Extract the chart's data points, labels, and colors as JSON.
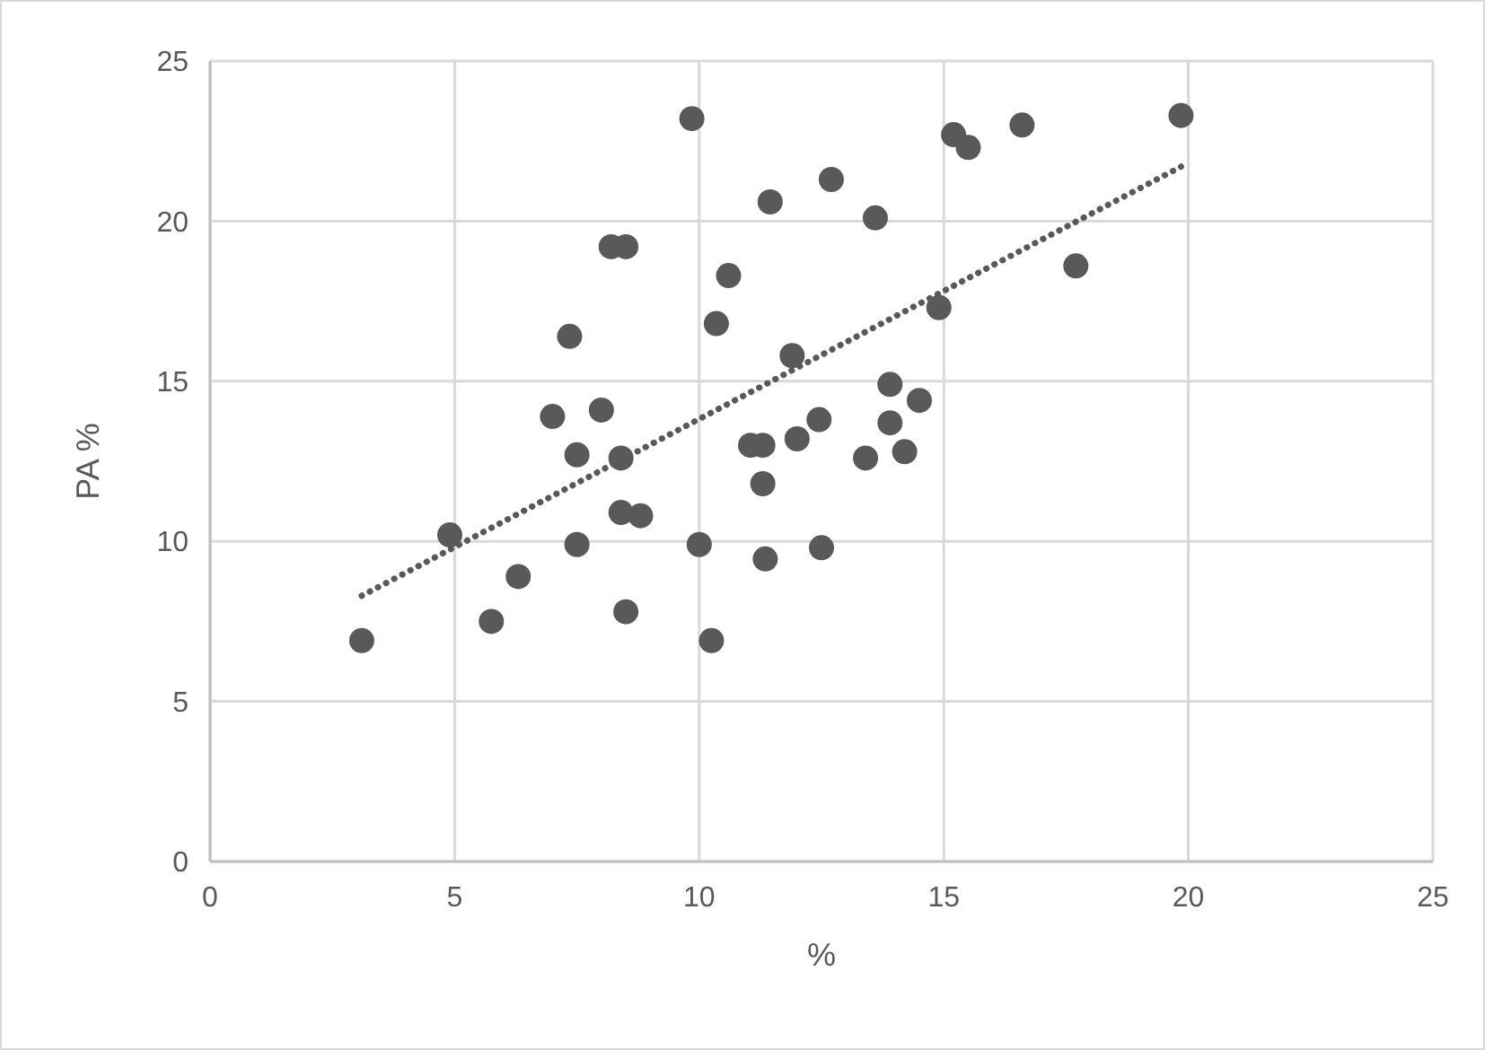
{
  "chart_data": {
    "type": "scatter",
    "xlabel": "%",
    "ylabel": "PA %",
    "xlim": [
      0,
      25
    ],
    "ylim": [
      0,
      25
    ],
    "xticks": [
      0,
      5,
      10,
      15,
      20,
      25
    ],
    "yticks": [
      0,
      5,
      10,
      15,
      20,
      25
    ],
    "grid": true,
    "marker": "circle",
    "series": [
      {
        "color": "#595959",
        "x": [
          3.1,
          4.9,
          5.75,
          6.3,
          7.0,
          7.35,
          7.5,
          7.5,
          8.0,
          8.2,
          8.5,
          8.4,
          8.4,
          8.8,
          8.5,
          9.85,
          10.0,
          10.25,
          10.35,
          10.6,
          11.05,
          11.3,
          11.3,
          11.35,
          11.45,
          11.9,
          12.0,
          12.45,
          12.5,
          12.7,
          13.4,
          13.6,
          13.9,
          13.9,
          14.2,
          14.5,
          14.9,
          15.2,
          15.5,
          16.6,
          17.7,
          19.85
        ],
        "values": [
          6.9,
          10.2,
          7.5,
          8.9,
          13.9,
          16.4,
          12.7,
          9.9,
          14.1,
          19.2,
          19.2,
          12.6,
          10.9,
          10.8,
          7.8,
          23.2,
          9.9,
          6.9,
          16.8,
          18.3,
          13.0,
          13.0,
          11.8,
          9.45,
          20.6,
          15.8,
          13.2,
          13.8,
          9.8,
          21.3,
          12.6,
          20.1,
          14.9,
          13.7,
          12.8,
          14.4,
          17.3,
          22.7,
          22.3,
          23.0,
          18.6,
          23.3
        ]
      },
      {
        "type": "line",
        "color": "#595959",
        "line_style": "dotted",
        "marker": "none",
        "x": [
          3.1,
          19.85
        ],
        "values": [
          8.3,
          21.7
        ]
      }
    ]
  }
}
